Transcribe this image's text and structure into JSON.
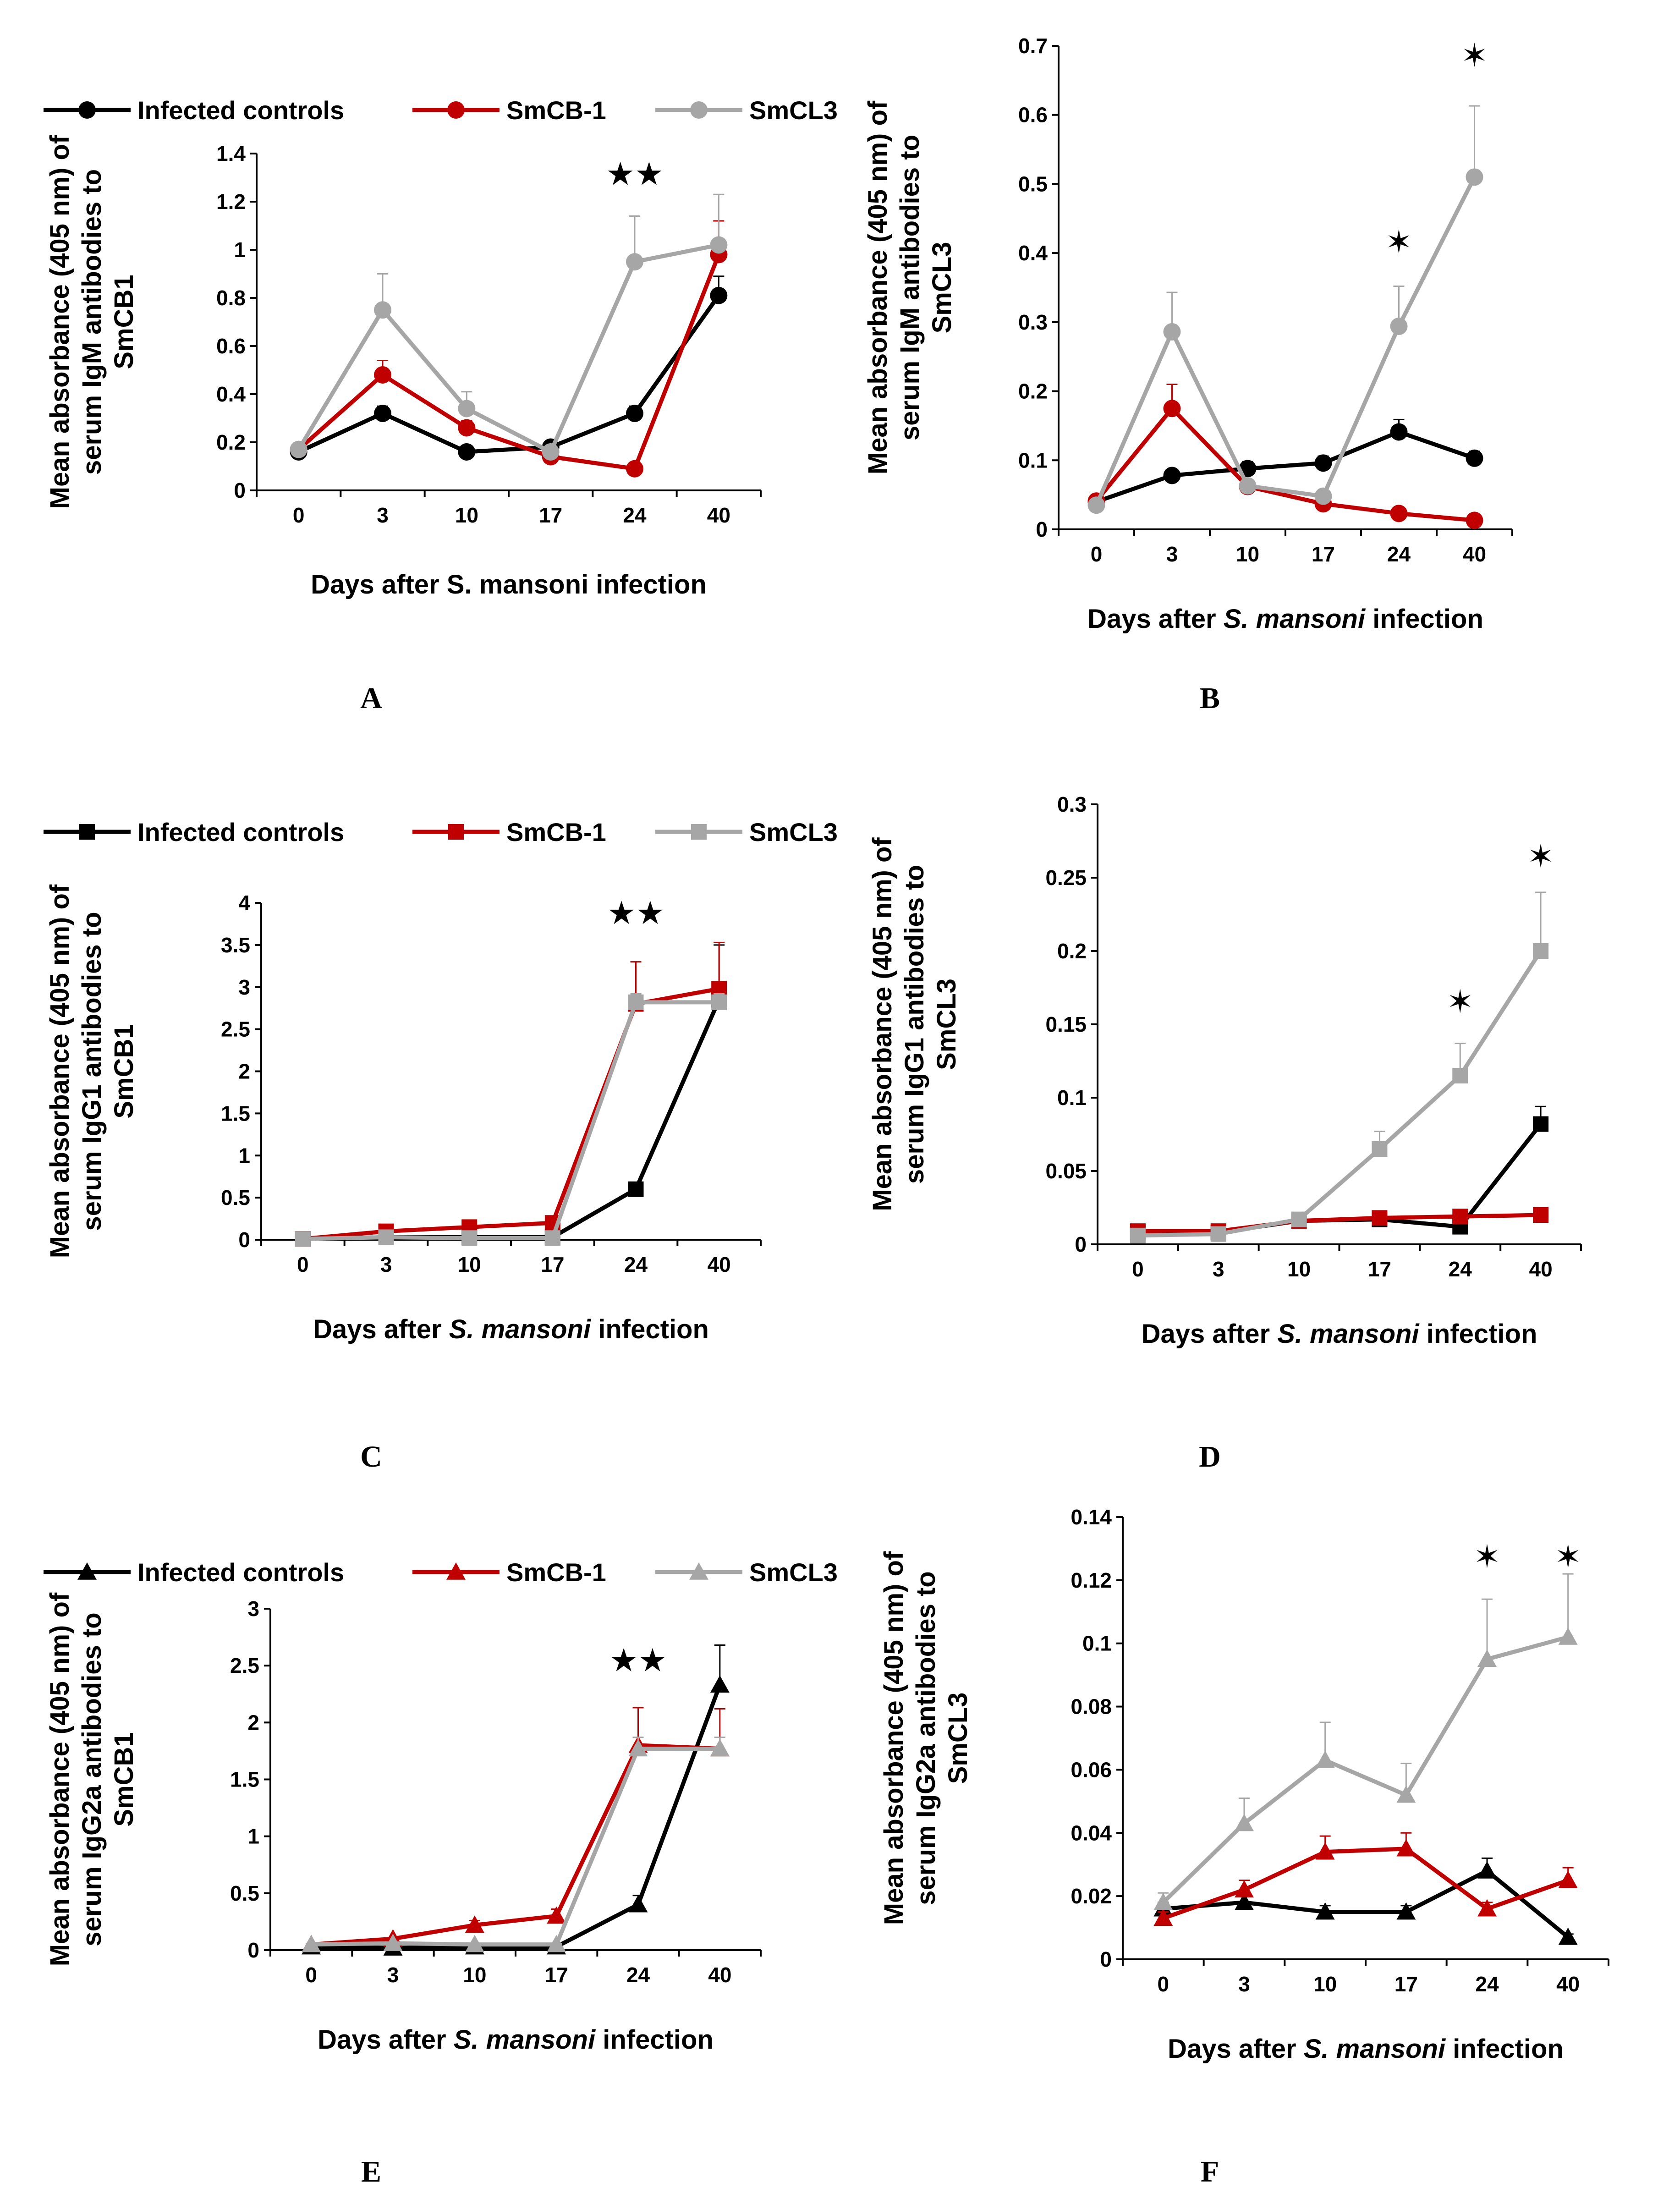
{
  "figure": {
    "xlabel_prefix": "Days after ",
    "species": "S. mansoni",
    "xlabel_suffix": " infection",
    "plain_xlabel": "Days after S. mansoni infection"
  },
  "chart_data": [
    {
      "id": "A",
      "type": "line",
      "panel_label": "A",
      "marker": "circle",
      "ylabel": [
        "Mean absorbance (405 nm) of",
        "serum IgM antibodies to",
        "SmCB1"
      ],
      "xlabel": "Days after S. mansoni infection",
      "xlabel_italic": false,
      "categories": [
        "0",
        "3",
        "10",
        "17",
        "24",
        "40"
      ],
      "ylim": [
        0,
        1.4
      ],
      "yticks": [
        "0",
        "0.2",
        "0.4",
        "0.6",
        "0.8",
        "1",
        "1.2",
        "1.4"
      ],
      "legend": true,
      "series": [
        {
          "name": "Infected controls",
          "color": "#000000",
          "values": [
            0.16,
            0.32,
            0.16,
            0.18,
            0.32,
            0.81
          ],
          "errors": [
            0.02,
            0.03,
            0.02,
            0.02,
            0.03,
            0.08
          ]
        },
        {
          "name": "SmCB-1",
          "color": "#C00000",
          "values": [
            0.17,
            0.48,
            0.26,
            0.14,
            0.09,
            0.98
          ],
          "errors": [
            0.02,
            0.06,
            0.03,
            0.02,
            0.01,
            0.14
          ]
        },
        {
          "name": "SmCL3",
          "color": "#A6A6A6",
          "values": [
            0.17,
            0.75,
            0.34,
            0.16,
            0.95,
            1.02
          ],
          "errors": [
            0.02,
            0.15,
            0.07,
            0.02,
            0.19,
            0.21
          ]
        }
      ],
      "annotations": [
        {
          "category": "24",
          "y": 1.27,
          "text": "★★"
        }
      ]
    },
    {
      "id": "B",
      "type": "line",
      "panel_label": "B",
      "marker": "circle",
      "ylabel": [
        "Mean absorbance (405 nm) of",
        "serum IgM antibodies to",
        "SmCL3"
      ],
      "xlabel": "Days after S. mansoni infection",
      "xlabel_italic": true,
      "categories": [
        "0",
        "3",
        "10",
        "17",
        "24",
        "40"
      ],
      "ylim": [
        0,
        0.7
      ],
      "yticks": [
        "0",
        "0.1",
        "0.2",
        "0.3",
        "0.4",
        "0.5",
        "0.6",
        "0.7"
      ],
      "legend": false,
      "series": [
        {
          "name": "Infected controls",
          "color": "#000000",
          "values": [
            0.04,
            0.078,
            0.088,
            0.096,
            0.141,
            0.103
          ],
          "errors": [
            0.004,
            0.008,
            0.01,
            0.01,
            0.018,
            0.01
          ]
        },
        {
          "name": "SmCB-1",
          "color": "#C00000",
          "values": [
            0.041,
            0.175,
            0.062,
            0.037,
            0.023,
            0.013
          ],
          "errors": [
            0.004,
            0.035,
            0.006,
            0.004,
            0.003,
            0.002
          ]
        },
        {
          "name": "SmCL3",
          "color": "#A6A6A6",
          "values": [
            0.035,
            0.286,
            0.063,
            0.048,
            0.294,
            0.51
          ],
          "errors": [
            0.004,
            0.057,
            0.006,
            0.005,
            0.058,
            0.103
          ]
        }
      ],
      "annotations": [
        {
          "category": "24",
          "y": 0.4,
          "text": "✶"
        },
        {
          "category": "40",
          "y": 0.67,
          "text": "✶"
        }
      ]
    },
    {
      "id": "C",
      "type": "line",
      "panel_label": "C",
      "marker": "square",
      "ylabel": [
        "Mean absorbance (405 nm) of",
        "serum IgG1 antibodies to",
        "SmCB1"
      ],
      "xlabel": "Days after S. mansoni infection",
      "xlabel_italic": true,
      "categories": [
        "0",
        "3",
        "10",
        "17",
        "24",
        "40"
      ],
      "ylim": [
        0,
        4
      ],
      "yticks": [
        "0",
        "0.5",
        "1",
        "1.5",
        "2",
        "2.5",
        "3",
        "3.5",
        "4"
      ],
      "legend": true,
      "series": [
        {
          "name": "Infected controls",
          "color": "#000000",
          "values": [
            0.01,
            0.03,
            0.03,
            0.03,
            0.6,
            2.85
          ],
          "errors": [
            0.005,
            0.005,
            0.005,
            0.005,
            0.08,
            0.65
          ]
        },
        {
          "name": "SmCB-1",
          "color": "#C00000",
          "values": [
            0.01,
            0.1,
            0.15,
            0.2,
            2.8,
            2.98
          ],
          "errors": [
            0.005,
            0.01,
            0.02,
            0.03,
            0.5,
            0.55
          ]
        },
        {
          "name": "SmCL3",
          "color": "#A6A6A6",
          "values": [
            0.01,
            0.03,
            0.02,
            0.02,
            2.82,
            2.82
          ],
          "errors": [
            0.005,
            0.005,
            0.005,
            0.005,
            0.1,
            0.1
          ]
        }
      ],
      "annotations": [
        {
          "category": "24",
          "y": 3.75,
          "text": "★★"
        }
      ]
    },
    {
      "id": "D",
      "type": "line",
      "panel_label": "D",
      "marker": "square",
      "ylabel": [
        "Mean absorbance (405 nm) of",
        "serum IgG1 antibodies to",
        "SmCL3"
      ],
      "xlabel": "Days after S. mansoni infection",
      "xlabel_italic": true,
      "categories": [
        "0",
        "3",
        "10",
        "17",
        "24",
        "40"
      ],
      "ylim": [
        0,
        0.3
      ],
      "yticks": [
        "0",
        "0.05",
        "0.1",
        "0.15",
        "0.2",
        "0.25",
        "0.3"
      ],
      "legend": false,
      "series": [
        {
          "name": "Infected controls",
          "color": "#000000",
          "values": [
            0.008,
            0.008,
            0.016,
            0.017,
            0.012,
            0.082
          ],
          "errors": [
            0.001,
            0.001,
            0.002,
            0.002,
            0.002,
            0.012
          ]
        },
        {
          "name": "SmCB-1",
          "color": "#C00000",
          "values": [
            0.009,
            0.009,
            0.016,
            0.018,
            0.019,
            0.02
          ],
          "errors": [
            0.001,
            0.001,
            0.001,
            0.001,
            0.001,
            0.001
          ]
        },
        {
          "name": "SmCL3",
          "color": "#A6A6A6",
          "values": [
            0.006,
            0.007,
            0.017,
            0.065,
            0.115,
            0.2
          ],
          "errors": [
            0.001,
            0.001,
            0.002,
            0.012,
            0.022,
            0.04
          ]
        }
      ],
      "annotations": [
        {
          "category": "24",
          "y": 0.158,
          "text": "✶"
        },
        {
          "category": "40",
          "y": 0.257,
          "text": "✶"
        }
      ]
    },
    {
      "id": "E",
      "type": "line",
      "panel_label": "E",
      "marker": "triangle",
      "ylabel": [
        "Mean absorbance (405 nm) of",
        "serum IgG2a antibodies to",
        "SmCB1"
      ],
      "xlabel": "Days after S. mansoni infection",
      "xlabel_italic": true,
      "categories": [
        "0",
        "3",
        "10",
        "17",
        "24",
        "40"
      ],
      "ylim": [
        0,
        3
      ],
      "yticks": [
        "0",
        "0.5",
        "1",
        "1.5",
        "2",
        "2.5",
        "3"
      ],
      "legend": true,
      "series": [
        {
          "name": "Infected controls",
          "color": "#000000",
          "values": [
            0.03,
            0.02,
            0.03,
            0.03,
            0.4,
            2.33
          ],
          "errors": [
            0.005,
            0.005,
            0.005,
            0.005,
            0.08,
            0.35
          ]
        },
        {
          "name": "SmCB-1",
          "color": "#C00000",
          "values": [
            0.05,
            0.1,
            0.22,
            0.3,
            1.8,
            1.77
          ],
          "errors": [
            0.005,
            0.01,
            0.04,
            0.06,
            0.33,
            0.35
          ]
        },
        {
          "name": "SmCL3",
          "color": "#A6A6A6",
          "values": [
            0.05,
            0.06,
            0.05,
            0.05,
            1.77,
            1.77
          ],
          "errors": [
            0.005,
            0.005,
            0.005,
            0.005,
            0.1,
            0.1
          ]
        }
      ],
      "annotations": [
        {
          "category": "24",
          "y": 2.45,
          "text": "★★"
        }
      ]
    },
    {
      "id": "F",
      "type": "line",
      "panel_label": "F",
      "marker": "triangle",
      "ylabel": [
        "Mean absorbance (405 nm) of",
        "serum IgG2a antibodies to",
        "SmCL3"
      ],
      "xlabel": "Days after S. mansoni infection",
      "xlabel_italic": true,
      "categories": [
        "0",
        "3",
        "10",
        "17",
        "24",
        "40"
      ],
      "ylim": [
        0,
        0.14
      ],
      "yticks": [
        "0",
        "0.02",
        "0.04",
        "0.06",
        "0.08",
        "0.1",
        "0.12",
        "0.14"
      ],
      "legend": false,
      "series": [
        {
          "name": "Infected controls",
          "color": "#000000",
          "values": [
            0.016,
            0.018,
            0.015,
            0.015,
            0.028,
            0.007
          ],
          "errors": [
            0.002,
            0.002,
            0.002,
            0.002,
            0.004,
            0.001
          ]
        },
        {
          "name": "SmCB-1",
          "color": "#C00000",
          "values": [
            0.013,
            0.022,
            0.034,
            0.035,
            0.016,
            0.025
          ],
          "errors": [
            0.002,
            0.003,
            0.005,
            0.005,
            0.002,
            0.004
          ]
        },
        {
          "name": "SmCL3",
          "color": "#A6A6A6",
          "values": [
            0.018,
            0.043,
            0.063,
            0.052,
            0.095,
            0.102
          ],
          "errors": [
            0.003,
            0.008,
            0.012,
            0.01,
            0.019,
            0.02
          ]
        }
      ],
      "annotations": [
        {
          "category": "24",
          "y": 0.124,
          "text": "✶"
        },
        {
          "category": "40",
          "y": 0.124,
          "text": "✶"
        }
      ]
    }
  ]
}
